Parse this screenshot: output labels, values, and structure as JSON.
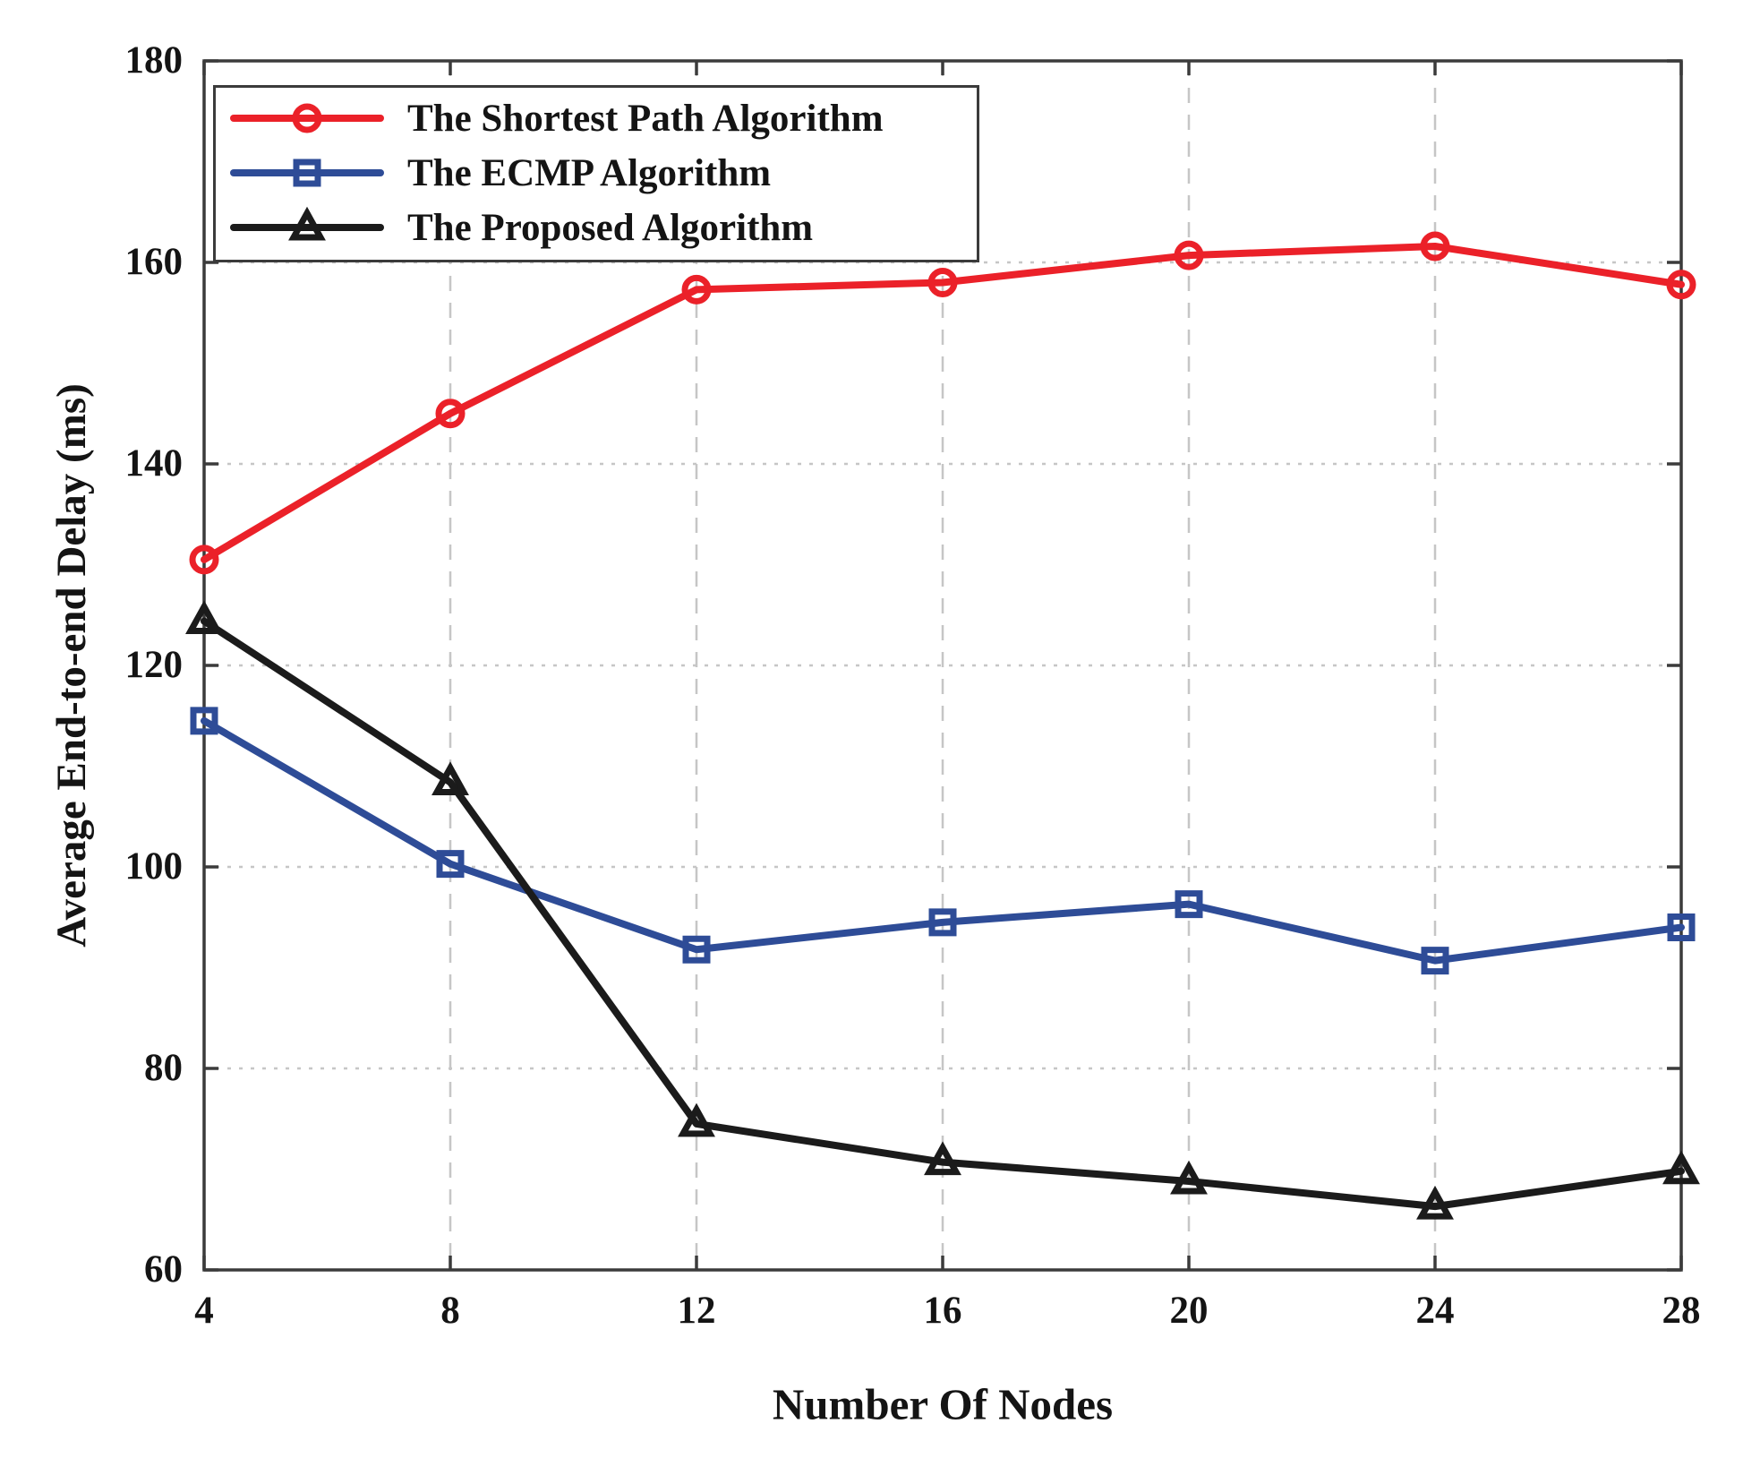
{
  "chart_data": {
    "type": "line",
    "title": "",
    "xlabel": "Number Of Nodes",
    "ylabel": "Average End-to-end Delay (ms)",
    "x": [
      4,
      8,
      12,
      16,
      20,
      24,
      28
    ],
    "xlim": [
      4,
      28
    ],
    "ylim": [
      60,
      180
    ],
    "xticks": [
      4,
      8,
      12,
      16,
      20,
      24,
      28
    ],
    "yticks": [
      60,
      80,
      100,
      120,
      140,
      160,
      180
    ],
    "grid": true,
    "legend_position": "top-left",
    "series": [
      {
        "name": "The Shortest Path Algorithm",
        "marker": "circle",
        "color": "#EB2129",
        "values": [
          130.5,
          145.0,
          157.3,
          158.0,
          160.7,
          161.6,
          157.8
        ]
      },
      {
        "name": "The ECMP Algorithm",
        "marker": "square",
        "color": "#2E4C97",
        "values": [
          114.5,
          100.3,
          91.8,
          94.5,
          96.3,
          90.7,
          94.0
        ]
      },
      {
        "name": "The Proposed Algorithm",
        "marker": "triangle",
        "color": "#1B1B1B",
        "values": [
          124.4,
          108.4,
          74.5,
          70.7,
          68.8,
          66.3,
          69.8
        ]
      }
    ]
  },
  "colors": {
    "grid": "#c6c6c6",
    "axis": "#3b3b3b",
    "text": "#141414",
    "background": "#ffffff"
  }
}
